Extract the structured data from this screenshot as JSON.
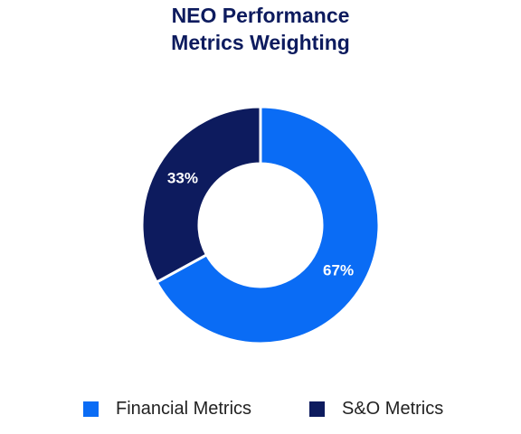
{
  "chart_data": {
    "type": "pie",
    "title": "NEO Performance Metrics Weighting",
    "title_lines": [
      "NEO Performance",
      "Metrics Weighting"
    ],
    "donut": true,
    "slices": [
      {
        "name": "Financial Metrics",
        "value": 67,
        "label": "67%",
        "color": "#0a6cf5"
      },
      {
        "name": "S&O Metrics",
        "value": 33,
        "label": "33%",
        "color": "#0d1b5e"
      }
    ],
    "legend": {
      "position": "bottom"
    },
    "label_color": "#ffffff"
  }
}
